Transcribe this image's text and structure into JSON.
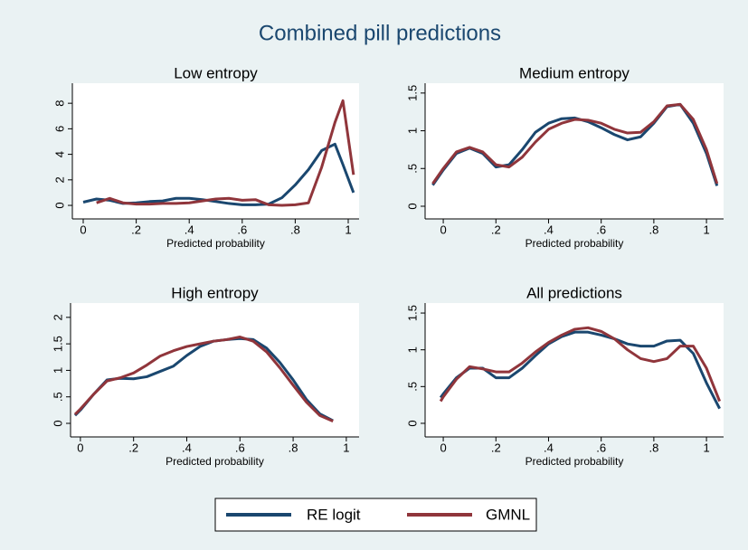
{
  "chart_data": {
    "type": "line",
    "title": "Combined pill predictions",
    "series": [
      {
        "name": "RE logit",
        "color": "#1a476f"
      },
      {
        "name": "GMNL",
        "color": "#90353b"
      }
    ],
    "panels": [
      {
        "subtitle": "Low entropy",
        "xlabel": "Predicted probability",
        "x": [
          0,
          0.05,
          0.1,
          0.15,
          0.2,
          0.25,
          0.3,
          0.35,
          0.4,
          0.45,
          0.5,
          0.55,
          0.6,
          0.65,
          0.7,
          0.75,
          0.8,
          0.85,
          0.9,
          0.95,
          0.98,
          1.02
        ],
        "values": [
          [
            0.25,
            0.5,
            0.4,
            0.15,
            0.2,
            0.3,
            0.35,
            0.55,
            0.55,
            0.45,
            0.3,
            0.15,
            0.05,
            0.05,
            0.1,
            0.6,
            1.6,
            2.8,
            4.3,
            4.8,
            3.2,
            1.0
          ],
          [
            null,
            0.2,
            0.55,
            0.2,
            0.1,
            0.1,
            0.15,
            0.15,
            0.2,
            0.35,
            0.5,
            0.55,
            0.4,
            0.45,
            0.05,
            0.0,
            0.05,
            0.2,
            3.0,
            6.5,
            8.2,
            2.4
          ]
        ],
        "xlim": [
          -0.041,
          1.041
        ],
        "ylim": [
          -1.06,
          9.57
        ],
        "xticks": [
          0,
          {
            "value": 0.2,
            "label": ".2"
          },
          {
            "value": 0.4,
            "label": ".4"
          },
          {
            "value": 0.6,
            "label": ".6"
          },
          {
            "value": 0.8,
            "label": ".8"
          },
          1
        ],
        "yticks": [
          0,
          2,
          4,
          6,
          8
        ]
      },
      {
        "subtitle": "Medium entropy",
        "xlabel": "Predicted probability",
        "x": [
          -0.04,
          0,
          0.05,
          0.1,
          0.15,
          0.2,
          0.25,
          0.3,
          0.35,
          0.4,
          0.45,
          0.5,
          0.55,
          0.6,
          0.65,
          0.7,
          0.75,
          0.8,
          0.85,
          0.9,
          0.95,
          1.0,
          1.04
        ],
        "values": [
          [
            0.28,
            0.48,
            0.7,
            0.77,
            0.7,
            0.52,
            0.55,
            0.75,
            0.98,
            1.1,
            1.16,
            1.17,
            1.12,
            1.04,
            0.95,
            0.88,
            0.92,
            1.1,
            1.32,
            1.35,
            1.1,
            0.7,
            0.27
          ],
          [
            0.3,
            0.5,
            0.72,
            0.78,
            0.72,
            0.55,
            0.52,
            0.65,
            0.85,
            1.02,
            1.1,
            1.15,
            1.14,
            1.1,
            1.02,
            0.97,
            0.98,
            1.12,
            1.33,
            1.35,
            1.15,
            0.75,
            0.3
          ]
        ],
        "xlim": [
          -0.069,
          1.065
        ],
        "ylim": [
          -0.168,
          1.63
        ],
        "xticks": [
          0,
          {
            "value": 0.2,
            "label": ".2"
          },
          {
            "value": 0.4,
            "label": ".4"
          },
          {
            "value": 0.6,
            "label": ".6"
          },
          {
            "value": 0.8,
            "label": ".8"
          },
          1
        ],
        "yticks": [
          0,
          {
            "value": 0.5,
            "label": ".5"
          },
          1,
          1.5
        ]
      },
      {
        "subtitle": "High entropy",
        "xlabel": "Predicted probability",
        "x": [
          -0.02,
          0,
          0.05,
          0.1,
          0.15,
          0.2,
          0.25,
          0.3,
          0.35,
          0.4,
          0.45,
          0.5,
          0.55,
          0.6,
          0.65,
          0.7,
          0.75,
          0.8,
          0.85,
          0.9,
          0.95
        ],
        "values": [
          [
            0.15,
            0.25,
            0.55,
            0.82,
            0.85,
            0.84,
            0.88,
            0.98,
            1.08,
            1.28,
            1.45,
            1.55,
            1.58,
            1.6,
            1.58,
            1.42,
            1.15,
            0.82,
            0.45,
            0.18,
            0.05
          ],
          [
            0.17,
            0.27,
            0.55,
            0.8,
            0.86,
            0.95,
            1.1,
            1.27,
            1.37,
            1.45,
            1.5,
            1.55,
            1.58,
            1.63,
            1.55,
            1.35,
            1.05,
            0.72,
            0.4,
            0.15,
            0.04
          ]
        ],
        "xlim": [
          -0.037,
          1.048
        ],
        "ylim": [
          -0.256,
          2.27
        ],
        "xticks": [
          0,
          {
            "value": 0.2,
            "label": ".2"
          },
          {
            "value": 0.4,
            "label": ".4"
          },
          {
            "value": 0.6,
            "label": ".6"
          },
          {
            "value": 0.8,
            "label": ".8"
          },
          1
        ],
        "yticks": [
          0,
          {
            "value": 0.5,
            "label": ".5"
          },
          1,
          1.5,
          2
        ]
      },
      {
        "subtitle": "All predictions",
        "xlabel": "Predicted probability",
        "x": [
          -0.01,
          0,
          0.05,
          0.1,
          0.15,
          0.2,
          0.25,
          0.3,
          0.35,
          0.4,
          0.45,
          0.5,
          0.55,
          0.6,
          0.65,
          0.7,
          0.75,
          0.8,
          0.85,
          0.9,
          0.95,
          1.0,
          1.05
        ],
        "values": [
          [
            0.35,
            0.4,
            0.62,
            0.75,
            0.75,
            0.62,
            0.62,
            0.75,
            0.92,
            1.08,
            1.18,
            1.24,
            1.24,
            1.2,
            1.15,
            1.08,
            1.05,
            1.05,
            1.12,
            1.13,
            0.95,
            0.55,
            0.2
          ],
          [
            0.3,
            0.36,
            0.6,
            0.77,
            0.74,
            0.7,
            0.7,
            0.82,
            0.97,
            1.1,
            1.2,
            1.28,
            1.3,
            1.25,
            1.15,
            1.0,
            0.88,
            0.84,
            0.88,
            1.05,
            1.05,
            0.75,
            0.3
          ]
        ],
        "xlim": [
          -0.069,
          1.065
        ],
        "ylim": [
          -0.185,
          1.636
        ],
        "xticks": [
          0,
          {
            "value": 0.2,
            "label": ".2"
          },
          {
            "value": 0.4,
            "label": ".4"
          },
          {
            "value": 0.6,
            "label": ".6"
          },
          {
            "value": 0.8,
            "label": ".8"
          },
          1
        ],
        "yticks": [
          0,
          {
            "value": 0.5,
            "label": ".5"
          },
          1,
          1.5
        ]
      }
    ]
  }
}
